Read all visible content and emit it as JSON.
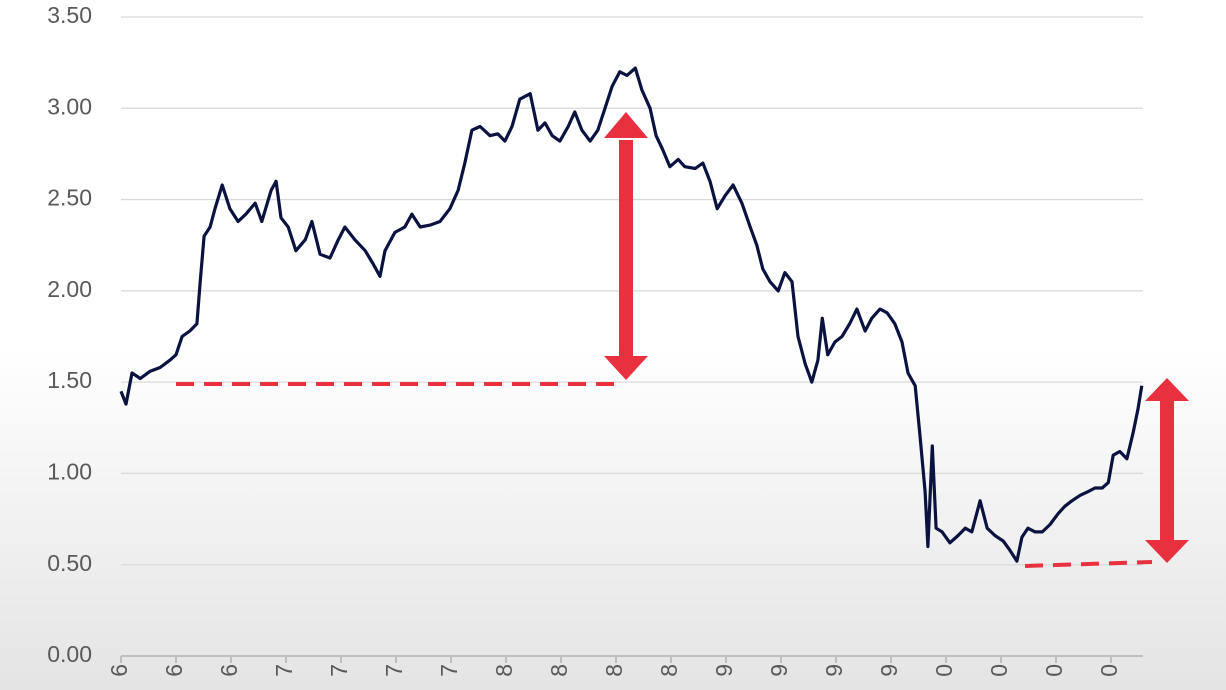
{
  "chart_data": {
    "type": "line",
    "series": [
      {
        "color": "#0b1240",
        "x": [
          0,
          0.09,
          0.2,
          0.35,
          0.53,
          0.71,
          0.89,
          1,
          1.11,
          1.25,
          1.38,
          1.44,
          1.51,
          1.62,
          1.71,
          1.84,
          1.98,
          2.13,
          2.27,
          2.44,
          2.56,
          2.73,
          2.82,
          2.91,
          3.04,
          3.18,
          3.35,
          3.47,
          3.62,
          3.8,
          3.95,
          4.07,
          4.25,
          4.44,
          4.58,
          4.71,
          4.8,
          4.98,
          5.16,
          5.29,
          5.44,
          5.62,
          5.8,
          5.98,
          6.13,
          6.25,
          6.38,
          6.53,
          6.71,
          6.85,
          6.98,
          7.11,
          7.25,
          7.44,
          7.58,
          7.71,
          7.84,
          7.98,
          8.13,
          8.25,
          8.38,
          8.53,
          8.67,
          8.8,
          8.93,
          9.07,
          9.2,
          9.35,
          9.47,
          9.62,
          9.73,
          9.84,
          9.98,
          10.13,
          10.25,
          10.44,
          10.58,
          10.71,
          10.84,
          10.98,
          11.13,
          11.29,
          11.44,
          11.56,
          11.67,
          11.8,
          11.95,
          12.07,
          12.2,
          12.31,
          12.44,
          12.56,
          12.67,
          12.75,
          12.85,
          12.98,
          13.11,
          13.25,
          13.38,
          13.53,
          13.65,
          13.8,
          13.93,
          14.07,
          14.2,
          14.31,
          14.44,
          14.53,
          14.62,
          14.67,
          14.75,
          14.82,
          14.93,
          15.07,
          15.22,
          15.35,
          15.47,
          15.62,
          15.75,
          15.89,
          16.04,
          16.16,
          16.29,
          16.38,
          16.49,
          16.62,
          16.75,
          16.89,
          17.04,
          17.16,
          17.29,
          17.44,
          17.58,
          17.71,
          17.84,
          17.95,
          18.04,
          18.16,
          18.29,
          18.4,
          18.49,
          18.56
        ],
        "values": [
          1.45,
          1.38,
          1.55,
          1.52,
          1.56,
          1.58,
          1.62,
          1.65,
          1.75,
          1.78,
          1.82,
          2.05,
          2.3,
          2.35,
          2.45,
          2.58,
          2.45,
          2.38,
          2.42,
          2.48,
          2.38,
          2.55,
          2.6,
          2.4,
          2.35,
          2.22,
          2.28,
          2.38,
          2.2,
          2.18,
          2.28,
          2.35,
          2.28,
          2.22,
          2.15,
          2.08,
          2.22,
          2.32,
          2.35,
          2.42,
          2.35,
          2.36,
          2.38,
          2.45,
          2.55,
          2.7,
          2.88,
          2.9,
          2.85,
          2.86,
          2.82,
          2.9,
          3.05,
          3.08,
          2.88,
          2.92,
          2.85,
          2.82,
          2.9,
          2.98,
          2.88,
          2.82,
          2.88,
          3.0,
          3.12,
          3.2,
          3.18,
          3.22,
          3.1,
          3.0,
          2.85,
          2.78,
          2.68,
          2.72,
          2.68,
          2.67,
          2.7,
          2.6,
          2.45,
          2.52,
          2.58,
          2.48,
          2.35,
          2.25,
          2.12,
          2.05,
          2.0,
          2.1,
          2.05,
          1.75,
          1.6,
          1.5,
          1.62,
          1.85,
          1.65,
          1.72,
          1.75,
          1.82,
          1.9,
          1.78,
          1.85,
          1.9,
          1.88,
          1.82,
          1.72,
          1.55,
          1.48,
          1.2,
          0.9,
          0.6,
          1.15,
          0.7,
          0.68,
          0.62,
          0.66,
          0.7,
          0.68,
          0.85,
          0.7,
          0.66,
          0.63,
          0.58,
          0.52,
          0.65,
          0.7,
          0.68,
          0.68,
          0.72,
          0.78,
          0.82,
          0.85,
          0.88,
          0.9,
          0.92,
          0.92,
          0.95,
          1.1,
          1.12,
          1.08,
          1.22,
          1.35,
          1.48
        ]
      }
    ],
    "xlim": [
      0,
      18.6
    ],
    "xticks": [
      {
        "value": 0,
        "label": "6"
      },
      {
        "value": 1,
        "label": "6"
      },
      {
        "value": 2,
        "label": "6"
      },
      {
        "value": 3,
        "label": "7"
      },
      {
        "value": 4,
        "label": "7"
      },
      {
        "value": 5,
        "label": "7"
      },
      {
        "value": 6,
        "label": "7"
      },
      {
        "value": 7,
        "label": "8"
      },
      {
        "value": 8,
        "label": "8"
      },
      {
        "value": 9,
        "label": "8"
      },
      {
        "value": 10,
        "label": "8"
      },
      {
        "value": 11,
        "label": "9"
      },
      {
        "value": 12,
        "label": "9"
      },
      {
        "value": 13,
        "label": "9"
      },
      {
        "value": 14,
        "label": "9"
      },
      {
        "value": 15,
        "label": "0"
      },
      {
        "value": 16,
        "label": "0"
      },
      {
        "value": 17,
        "label": "0"
      },
      {
        "value": 18,
        "label": "0"
      }
    ],
    "ylim": [
      0,
      3.5
    ],
    "yticks": [
      {
        "value": 0,
        "label": "0.00"
      },
      {
        "value": 0.5,
        "label": "0.50"
      },
      {
        "value": 1,
        "label": "1.00"
      },
      {
        "value": 1.5,
        "label": "1.50"
      },
      {
        "value": 2,
        "label": "2.00"
      },
      {
        "value": 2.5,
        "label": "2.50"
      },
      {
        "value": 3,
        "label": "3.00"
      },
      {
        "value": 3.5,
        "label": "3.50"
      }
    ],
    "grid": true
  }
}
